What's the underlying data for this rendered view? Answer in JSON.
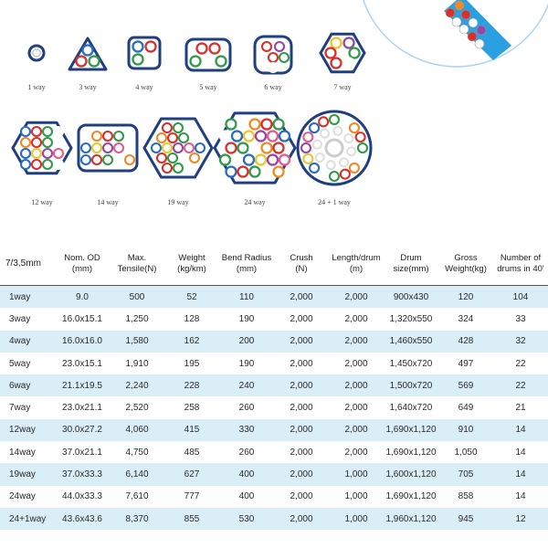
{
  "bundles": [
    {
      "label": "1 way"
    },
    {
      "label": "3 way"
    },
    {
      "label": "4 way"
    },
    {
      "label": "5 way"
    },
    {
      "label": "6 way"
    },
    {
      "label": "7 way"
    },
    {
      "label": "12 way"
    },
    {
      "label": "14 way"
    },
    {
      "label": "19 way"
    },
    {
      "label": "24 way"
    },
    {
      "label": "24 + 1 way"
    }
  ],
  "colors": {
    "outline": "#1f3f80",
    "blue": "#2a6cc0",
    "red": "#d8312c",
    "green": "#2f9a48",
    "white": "#ffffff",
    "orange": "#ef8a25",
    "yellow": "#e8c62c",
    "purple": "#9546a8",
    "pink": "#e25c8c",
    "table_stripe": "#d9eef6",
    "sheath_blue": "#2aa0e0"
  },
  "table": {
    "headers": [
      "7/3,5mm",
      "Nom. OD\n(mm)",
      "Max.\nTensile(N)",
      "Weight\n(kg/km)",
      "Bend Radius\n(mm)",
      "Crush\n(N)",
      "Length/drum\n(m)",
      "Drum\nsize(mm)",
      "Gross\nWeight(kg)",
      "Number of\ndrums in 40'"
    ],
    "rows": [
      [
        "1way",
        "9.0",
        "500",
        "52",
        "110",
        "2,000",
        "2,000",
        "900x430",
        "120",
        "104"
      ],
      [
        "3way",
        "16.0x15.1",
        "1,250",
        "128",
        "190",
        "2,000",
        "2,000",
        "1,320x550",
        "324",
        "33"
      ],
      [
        "4way",
        "16.0x16.0",
        "1,580",
        "162",
        "200",
        "2,000",
        "2,000",
        "1,460x550",
        "428",
        "32"
      ],
      [
        "5way",
        "23.0x15.1",
        "1,910",
        "195",
        "190",
        "2,000",
        "2,000",
        "1,450x720",
        "497",
        "22"
      ],
      [
        "6way",
        "21.1x19.5",
        "2,240",
        "228",
        "240",
        "2,000",
        "2,000",
        "1,500x720",
        "569",
        "22"
      ],
      [
        "7way",
        "23.0x21.1",
        "2,520",
        "258",
        "260",
        "2,000",
        "2,000",
        "1,640x720",
        "649",
        "21"
      ],
      [
        "12way",
        "30.0x27.2",
        "4,060",
        "415",
        "330",
        "2,000",
        "2,000",
        "1,690x1,120",
        "910",
        "14"
      ],
      [
        "14way",
        "37.0x21.1",
        "4,750",
        "485",
        "260",
        "2,000",
        "2,000",
        "1,690x1,120",
        "1,050",
        "14"
      ],
      [
        "19way",
        "37.0x33.3",
        "6,140",
        "627",
        "400",
        "2,000",
        "1,000",
        "1,600x1,120",
        "705",
        "14"
      ],
      [
        "24way",
        "44.0x33.3",
        "7,610",
        "777",
        "400",
        "2,000",
        "1,000",
        "1,690x1,120",
        "858",
        "14"
      ],
      [
        "24+1way",
        "43.6x43.6",
        "8,370",
        "855",
        "530",
        "2,000",
        "1,000",
        "1,960x1,120",
        "945",
        "12"
      ]
    ]
  }
}
